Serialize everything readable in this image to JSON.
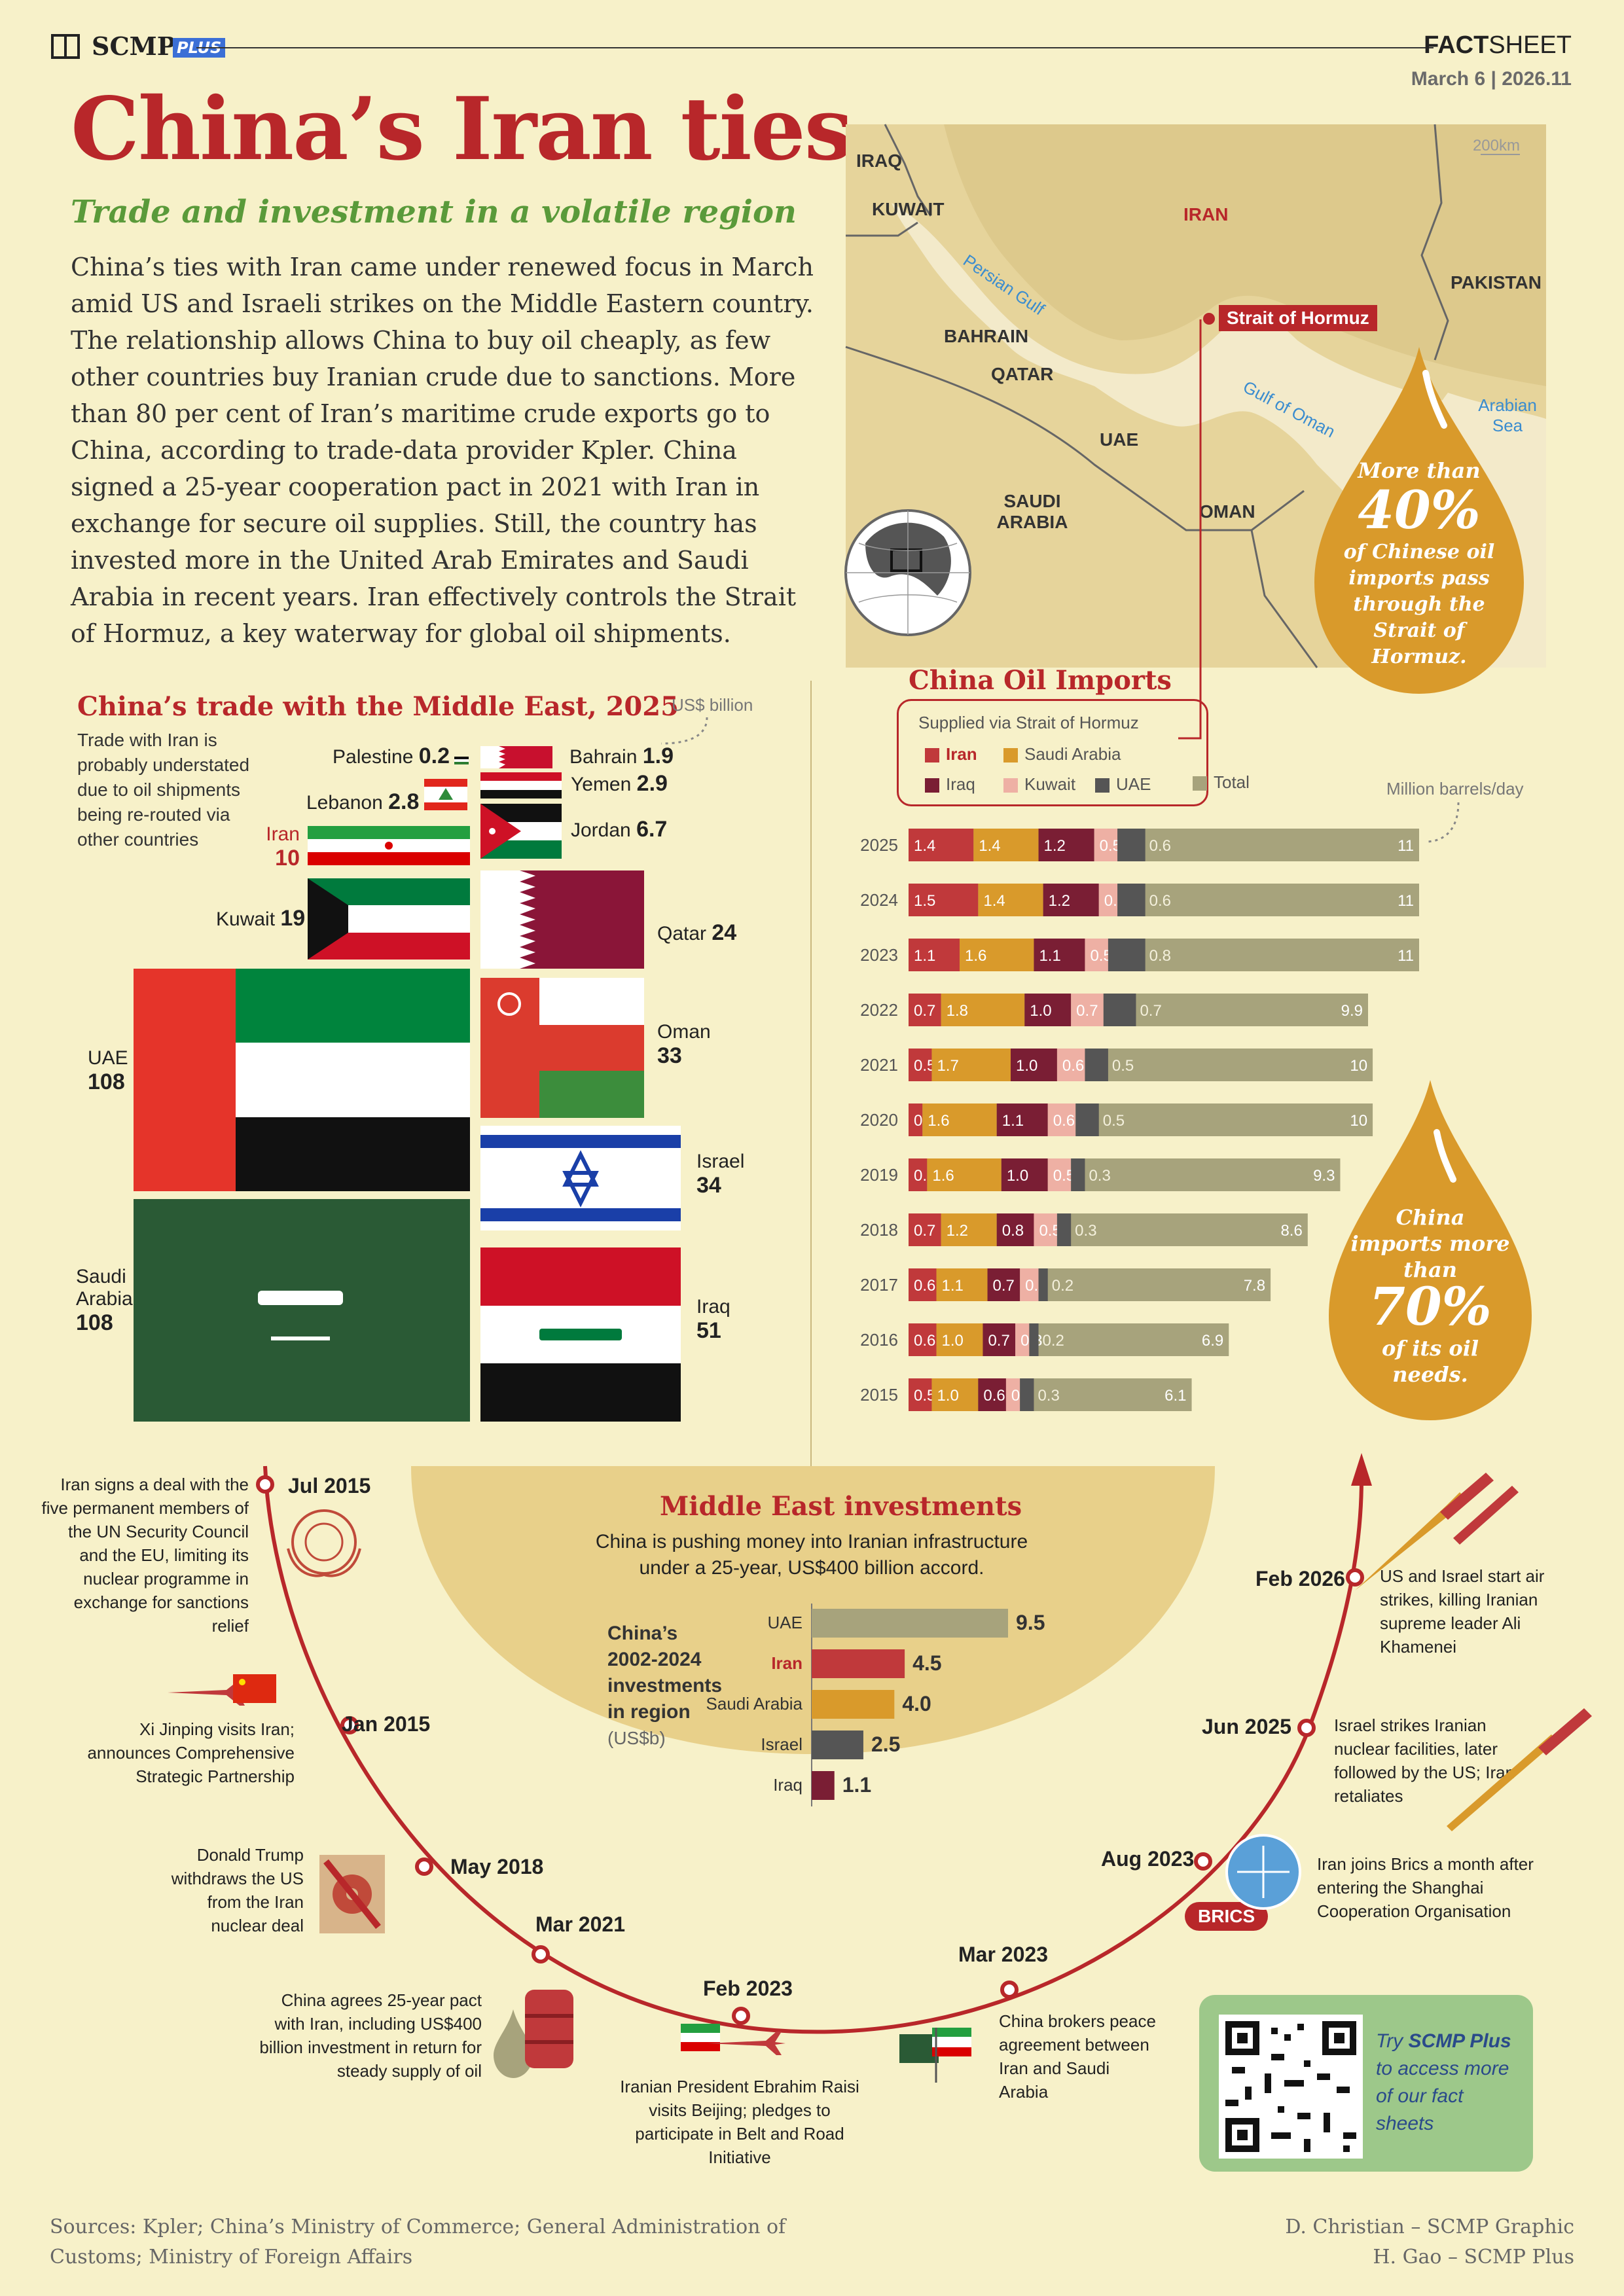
{
  "header": {
    "brand": "SCMP",
    "brand_badge": "PLUS",
    "factsheet_bold": "FACT",
    "factsheet_rest": "SHEET",
    "date": "March 6 | 2026.11"
  },
  "title": "China’s Iran ties",
  "subtitle": "Trade and investment in a volatile region",
  "intro": "China’s ties with Iran came under renewed focus in March amid US and Israeli strikes on the Middle Eastern country. The relationship allows China to buy oil cheaply, as few other countries buy Iranian crude due to sanctions. More than 80 per cent of Iran’s maritime crude exports go to China, according to trade-data provider Kpler. China signed a 25-year cooperation pact in 2021 with Iran in exchange for secure oil supplies. Still, the country has invested more in the United Arab Emirates and Saudi Arabia in recent years. Iran effectively controls the Strait of Hormuz, a key waterway for global oil shipments.",
  "map": {
    "scale": "200km",
    "labels": [
      "IRAQ",
      "KUWAIT",
      "IRAN",
      "PAKISTAN",
      "BAHRAIN",
      "QATAR",
      "UAE",
      "SAUDI ARABIA",
      "OMAN"
    ],
    "seas": [
      "Persian Gulf",
      "Gulf of Oman",
      "Arabian Sea"
    ],
    "strait_tag": "Strait of Hormuz",
    "drop_top": {
      "line1": "More than",
      "big": "40%",
      "line2": "of Chinese oil imports pass through the Strait of Hormuz."
    }
  },
  "trade": {
    "title": "China’s trade with the Middle East, 2025",
    "unit": "US$ billion",
    "note": "Trade with Iran is probably understated due to oil shipments being re-routed via other countries",
    "countries": [
      {
        "name": "Palestine",
        "value": "0.2"
      },
      {
        "name": "Bahrain",
        "value": "1.9"
      },
      {
        "name": "Lebanon",
        "value": "2.8"
      },
      {
        "name": "Yemen",
        "value": "2.9"
      },
      {
        "name": "Jordan",
        "value": "6.7"
      },
      {
        "name": "Iran",
        "value": "10"
      },
      {
        "name": "Kuwait",
        "value": "19"
      },
      {
        "name": "Qatar",
        "value": "24"
      },
      {
        "name": "Oman",
        "value": "33"
      },
      {
        "name": "Israel",
        "value": "34"
      },
      {
        "name": "Iraq",
        "value": "51"
      },
      {
        "name": "UAE",
        "value": "108"
      },
      {
        "name": "Saudi Arabia",
        "value": "108"
      }
    ]
  },
  "oil": {
    "title": "China Oil Imports",
    "legend_title": "Supplied via Strait of Hormuz",
    "legend": [
      {
        "name": "Iran",
        "color": "#c0393b"
      },
      {
        "name": "Saudi Arabia",
        "color": "#d99a2b"
      },
      {
        "name": "Iraq",
        "color": "#7a1e34"
      },
      {
        "name": "Kuwait",
        "color": "#eeb0a4"
      },
      {
        "name": "UAE",
        "color": "#555555"
      },
      {
        "name": "Total",
        "color": "#a7a37c"
      }
    ],
    "unit": "Million barrels/day",
    "drop_bottom": {
      "line1": "China imports more than",
      "big": "70%",
      "line2": "of its oil needs."
    }
  },
  "chart_data": [
    {
      "type": "bar",
      "title": "China Oil Imports",
      "ylabel": "Million barrels/day",
      "categories": [
        "2025",
        "2024",
        "2023",
        "2022",
        "2021",
        "2020",
        "2019",
        "2018",
        "2017",
        "2016",
        "2015"
      ],
      "series": [
        {
          "name": "Iran",
          "values": [
            1.4,
            1.5,
            1.1,
            0.7,
            0.5,
            0.3,
            0.4,
            0.7,
            0.6,
            0.6,
            0.5
          ]
        },
        {
          "name": "Saudi Arabia",
          "values": [
            1.4,
            1.4,
            1.6,
            1.8,
            1.7,
            1.6,
            1.6,
            1.2,
            1.1,
            1.0,
            1.0
          ]
        },
        {
          "name": "Iraq",
          "values": [
            1.2,
            1.2,
            1.1,
            1.0,
            1.0,
            1.1,
            1.0,
            0.8,
            0.7,
            0.7,
            0.6
          ]
        },
        {
          "name": "Kuwait",
          "values": [
            0.5,
            0.4,
            0.5,
            0.7,
            0.6,
            0.6,
            0.5,
            0.5,
            0.4,
            0.3,
            0.3
          ]
        },
        {
          "name": "UAE",
          "values": [
            0.6,
            0.6,
            0.8,
            0.7,
            0.5,
            0.5,
            0.3,
            0.3,
            0.2,
            0.2,
            0.3
          ]
        },
        {
          "name": "Total",
          "values": [
            11,
            11,
            11,
            9.9,
            10,
            10,
            9.3,
            8.6,
            7.8,
            6.9,
            6.1
          ]
        }
      ],
      "xlim": [
        0,
        11.5
      ]
    },
    {
      "type": "bar",
      "title": "Middle East investments",
      "categories": [
        "UAE",
        "Iran",
        "Saudi Arabia",
        "Israel",
        "Iraq"
      ],
      "values": [
        9.5,
        4.5,
        4.0,
        2.5,
        1.1
      ],
      "xlabel": "",
      "ylabel": "(US$b)"
    }
  ],
  "invest": {
    "title": "Middle East investments",
    "subtitle": "China is pushing money into Iranian infrastructure under a 25-year, US$400 billion accord.",
    "side_title": "China’s 2002-2024 investments in region",
    "side_unit": "(US$b)",
    "bars": [
      {
        "name": "UAE",
        "value": "9.5",
        "color": "#a7a37c"
      },
      {
        "name": "Iran",
        "value": "4.5",
        "color": "#c0393b"
      },
      {
        "name": "Saudi Arabia",
        "value": "4.0",
        "color": "#d99a2b"
      },
      {
        "name": "Israel",
        "value": "2.5",
        "color": "#555555"
      },
      {
        "name": "Iraq",
        "value": "1.1",
        "color": "#7a1e34"
      }
    ]
  },
  "timeline": [
    {
      "date": "Jul 2015",
      "text": "Iran signs a deal with the five permanent members of the UN Security Council and the EU, limiting its nuclear programme in exchange for sanctions relief"
    },
    {
      "date": "Jan 2015",
      "text": "Xi Jinping visits Iran; announces Comprehensive Strategic Partnership"
    },
    {
      "date": "May 2018",
      "text": "Donald Trump withdraws the US from the Iran nuclear deal"
    },
    {
      "date": "Mar 2021",
      "text": "China agrees 25-year pact with Iran, including US$400 billion investment in return for steady supply of oil"
    },
    {
      "date": "Feb 2023",
      "text": "Iranian President Ebrahim Raisi visits Beijing; pledges to participate in Belt and Road Initiative"
    },
    {
      "date": "Mar 2023",
      "text": "China brokers peace agreement between Iran and Saudi Arabia"
    },
    {
      "date": "Aug 2023",
      "text": "Iran joins Brics a month after entering the Shanghai Cooperation Organisation"
    },
    {
      "date": "Jun 2025",
      "text": "Israel strikes Iranian nuclear facilities, later followed by the US; Iran retaliates"
    },
    {
      "date": "Feb 2026",
      "text": "US and Israel start air strikes, killing Iranian supreme leader Ali Khamenei"
    }
  ],
  "brics_label": "BRICS",
  "qr": {
    "text_pre": "Try ",
    "text_bold": "SCMP Plus",
    "text_post": " to access more of our fact sheets"
  },
  "footer": {
    "sources": "Sources: Kpler; China’s Ministry of Commerce; General Administration of Customs; Ministry of Foreign Affairs",
    "credit1": "D. Christian – SCMP Graphic",
    "credit2": "H. Gao – SCMP Plus"
  }
}
